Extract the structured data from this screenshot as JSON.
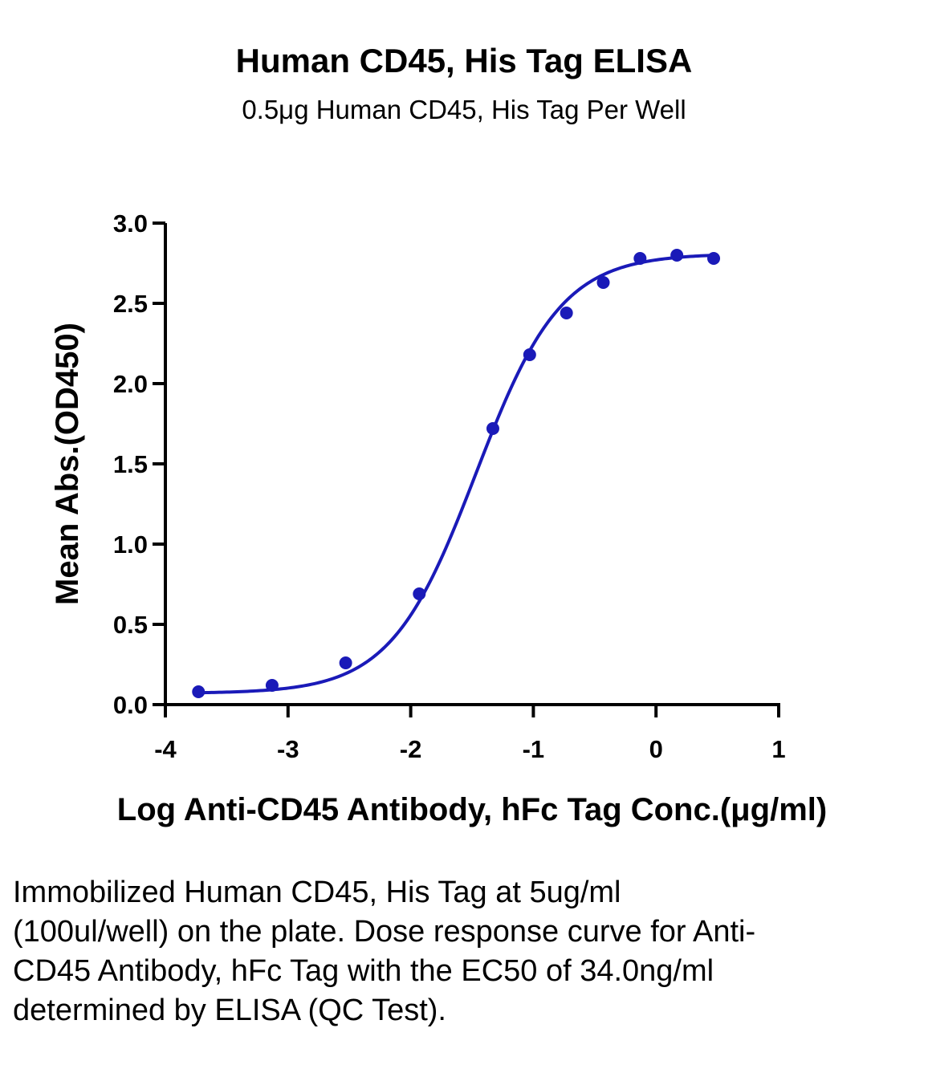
{
  "chart_data": {
    "type": "scatter",
    "title": "Human CD45, His Tag ELISA",
    "subtitle": "0.5μg Human CD45, His Tag Per Well",
    "xlabel": "Log Anti-CD45 Antibody, hFc Tag Conc.(μg/ml)",
    "ylabel": "Mean Abs.(OD450)",
    "xlim": [
      -4,
      1
    ],
    "ylim": [
      0,
      3.0
    ],
    "xticks": [
      "-4",
      "-3",
      "-2",
      "-1",
      "0",
      "1"
    ],
    "yticks": [
      "0.0",
      "0.5",
      "1.0",
      "1.5",
      "2.0",
      "2.5",
      "3.0"
    ],
    "grid": false,
    "series": [
      {
        "color": "#1a1ab8",
        "points": [
          {
            "x": -3.73,
            "y": 0.08
          },
          {
            "x": -3.13,
            "y": 0.12
          },
          {
            "x": -2.53,
            "y": 0.26
          },
          {
            "x": -1.93,
            "y": 0.69
          },
          {
            "x": -1.33,
            "y": 1.72
          },
          {
            "x": -1.03,
            "y": 2.18
          },
          {
            "x": -0.73,
            "y": 2.44
          },
          {
            "x": -0.43,
            "y": 2.63
          },
          {
            "x": -0.13,
            "y": 2.78
          },
          {
            "x": 0.17,
            "y": 2.8
          },
          {
            "x": 0.47,
            "y": 2.78
          }
        ],
        "fit": {
          "bottom": 0.07,
          "top": 2.81,
          "log_ec50": -1.468,
          "hill": 1.25
        }
      }
    ]
  },
  "caption": "Immobilized Human CD45, His Tag at 5ug/ml (100ul/well) on the plate. Dose response curve for Anti-CD45 Antibody, hFc Tag with the EC50 of 34.0ng/ml determined by ELISA (QC Test)."
}
